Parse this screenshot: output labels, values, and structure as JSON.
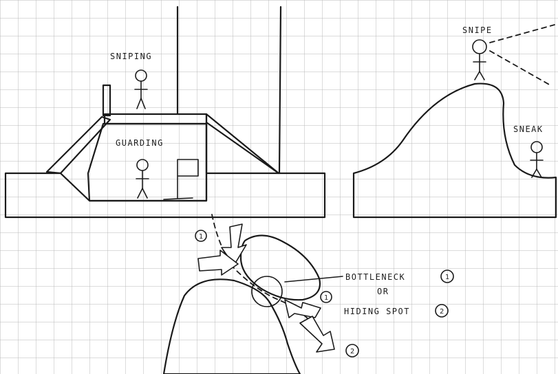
{
  "labels": {
    "sniping": "SNIPING",
    "guarding": "GUARDING",
    "snipe": "SNIPE",
    "sneak": "SNEAK",
    "bottleneck": "BOTTLENECK",
    "or": "OR",
    "hiding_spot": "HIDING SPOT"
  },
  "markers": {
    "one": "1",
    "two": "2"
  },
  "colors": {
    "paper": "#ffffff",
    "grid": "#b9b9b9",
    "ink": "#1a1a1a",
    "shade": "#8c8c8c"
  }
}
